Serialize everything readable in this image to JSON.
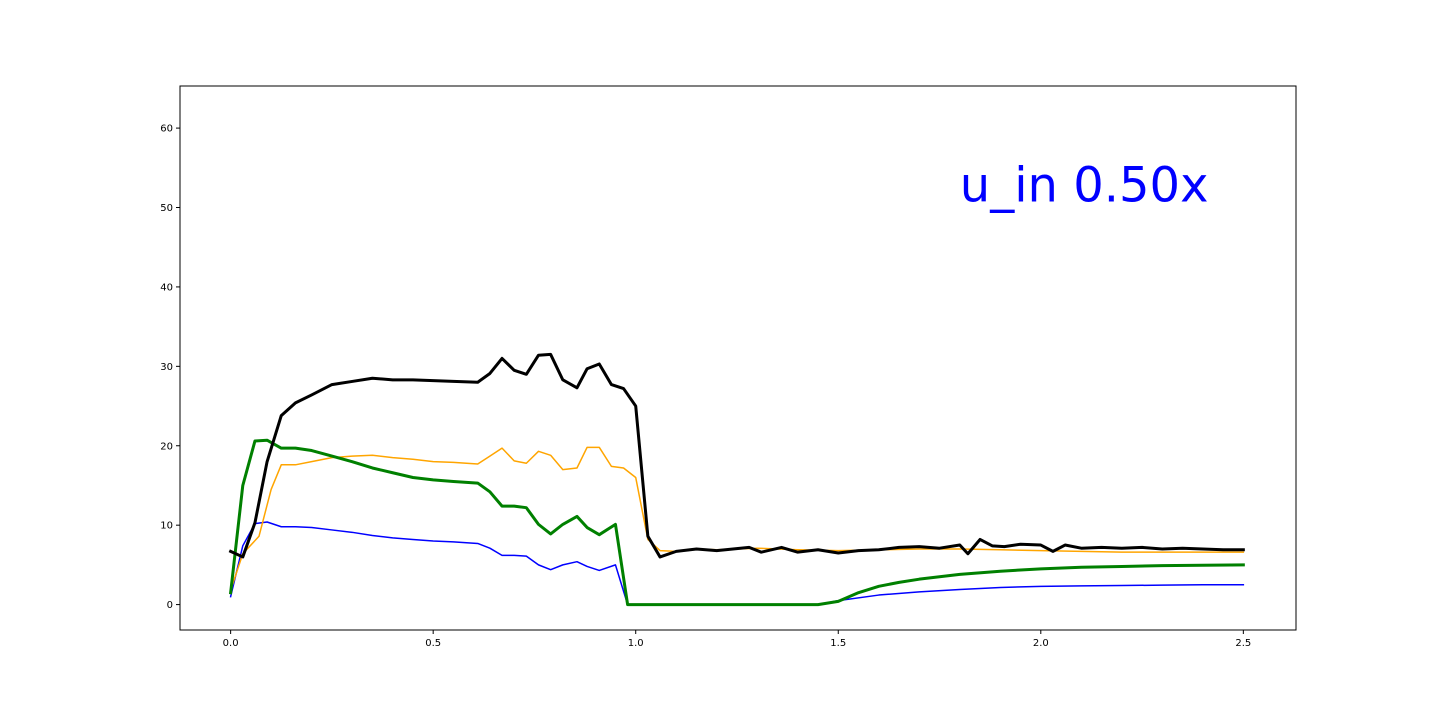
{
  "chart_data": {
    "type": "line",
    "title": "",
    "xlabel": "",
    "ylabel": "",
    "xlim": [
      -0.125,
      2.63
    ],
    "ylim": [
      -3.2,
      65.3
    ],
    "grid": false,
    "legend": "none",
    "xticks": [
      0.0,
      0.5,
      1.0,
      1.5,
      2.0,
      2.5
    ],
    "xtick_labels": [
      "0.0",
      "0.5",
      "1.0",
      "1.5",
      "2.0",
      "2.5"
    ],
    "yticks": [
      0,
      10,
      20,
      30,
      40,
      50,
      60
    ],
    "ytick_labels": [
      "0",
      "10",
      "20",
      "30",
      "40",
      "50",
      "60"
    ],
    "annotation": {
      "text": "u_in 0.50x",
      "x": 1.8,
      "y": 50.5,
      "color": "#0000ff"
    },
    "series": [
      {
        "color": "#0000ff",
        "width": 1.5,
        "points": [
          [
            0,
            1
          ],
          [
            0.03,
            7.4
          ],
          [
            0.06,
            10.2
          ],
          [
            0.09,
            10.4
          ],
          [
            0.125,
            9.8
          ],
          [
            0.16,
            9.8
          ],
          [
            0.2,
            9.7
          ],
          [
            0.25,
            9.4
          ],
          [
            0.3,
            9.1
          ],
          [
            0.35,
            8.7
          ],
          [
            0.4,
            8.4
          ],
          [
            0.45,
            8.2
          ],
          [
            0.5,
            8
          ],
          [
            0.55,
            7.9
          ],
          [
            0.61,
            7.7
          ],
          [
            0.64,
            7.1
          ],
          [
            0.67,
            6.2
          ],
          [
            0.7,
            6.2
          ],
          [
            0.73,
            6.1
          ],
          [
            0.76,
            5
          ],
          [
            0.79,
            4.4
          ],
          [
            0.82,
            5
          ],
          [
            0.855,
            5.4
          ],
          [
            0.88,
            4.8
          ],
          [
            0.91,
            4.3
          ],
          [
            0.95,
            5
          ],
          [
            0.98,
            0
          ],
          [
            1.45,
            0
          ],
          [
            1.5,
            0.5
          ],
          [
            1.6,
            1.2
          ],
          [
            1.7,
            1.6
          ],
          [
            1.8,
            1.9
          ],
          [
            1.9,
            2.15
          ],
          [
            2.0,
            2.3
          ],
          [
            2.1,
            2.35
          ],
          [
            2.2,
            2.4
          ],
          [
            2.3,
            2.45
          ],
          [
            2.4,
            2.5
          ],
          [
            2.5,
            2.5
          ]
        ]
      },
      {
        "color": "#ffa500",
        "width": 1.5,
        "points": [
          [
            0,
            1.8
          ],
          [
            0.03,
            6.4
          ],
          [
            0.07,
            8.6
          ],
          [
            0.1,
            14.5
          ],
          [
            0.125,
            17.6
          ],
          [
            0.16,
            17.6
          ],
          [
            0.2,
            18
          ],
          [
            0.25,
            18.5
          ],
          [
            0.3,
            18.7
          ],
          [
            0.35,
            18.8
          ],
          [
            0.4,
            18.5
          ],
          [
            0.45,
            18.3
          ],
          [
            0.5,
            18
          ],
          [
            0.55,
            17.9
          ],
          [
            0.61,
            17.7
          ],
          [
            0.64,
            18.7
          ],
          [
            0.67,
            19.7
          ],
          [
            0.7,
            18.1
          ],
          [
            0.73,
            17.8
          ],
          [
            0.76,
            19.3
          ],
          [
            0.79,
            18.8
          ],
          [
            0.82,
            17
          ],
          [
            0.855,
            17.2
          ],
          [
            0.88,
            19.8
          ],
          [
            0.91,
            19.8
          ],
          [
            0.94,
            17.4
          ],
          [
            0.97,
            17.2
          ],
          [
            1.0,
            16
          ],
          [
            1.03,
            8.2
          ],
          [
            1.06,
            6.8
          ],
          [
            1.1,
            6.7
          ],
          [
            1.15,
            7
          ],
          [
            1.2,
            6.9
          ],
          [
            1.3,
            7.1
          ],
          [
            1.4,
            6.9
          ],
          [
            1.5,
            6.8
          ],
          [
            1.6,
            6.9
          ],
          [
            1.7,
            7
          ],
          [
            1.8,
            7
          ],
          [
            1.9,
            6.9
          ],
          [
            2.0,
            6.8
          ],
          [
            2.1,
            6.7
          ],
          [
            2.2,
            6.6
          ],
          [
            2.3,
            6.6
          ],
          [
            2.4,
            6.6
          ],
          [
            2.5,
            6.6
          ]
        ]
      },
      {
        "color": "#008000",
        "width": 3,
        "points": [
          [
            0,
            1.5
          ],
          [
            0.03,
            15
          ],
          [
            0.06,
            20.6
          ],
          [
            0.09,
            20.7
          ],
          [
            0.125,
            19.7
          ],
          [
            0.16,
            19.7
          ],
          [
            0.2,
            19.4
          ],
          [
            0.25,
            18.7
          ],
          [
            0.3,
            18
          ],
          [
            0.35,
            17.2
          ],
          [
            0.4,
            16.6
          ],
          [
            0.45,
            16
          ],
          [
            0.5,
            15.7
          ],
          [
            0.55,
            15.5
          ],
          [
            0.61,
            15.3
          ],
          [
            0.64,
            14.2
          ],
          [
            0.67,
            12.4
          ],
          [
            0.7,
            12.4
          ],
          [
            0.73,
            12.2
          ],
          [
            0.76,
            10.1
          ],
          [
            0.79,
            8.9
          ],
          [
            0.82,
            10.1
          ],
          [
            0.855,
            11.1
          ],
          [
            0.88,
            9.7
          ],
          [
            0.91,
            8.8
          ],
          [
            0.95,
            10.1
          ],
          [
            0.98,
            0
          ],
          [
            1.45,
            0
          ],
          [
            1.5,
            0.4
          ],
          [
            1.55,
            1.5
          ],
          [
            1.6,
            2.3
          ],
          [
            1.65,
            2.8
          ],
          [
            1.7,
            3.2
          ],
          [
            1.8,
            3.8
          ],
          [
            1.9,
            4.2
          ],
          [
            2.0,
            4.5
          ],
          [
            2.1,
            4.7
          ],
          [
            2.2,
            4.8
          ],
          [
            2.3,
            4.9
          ],
          [
            2.4,
            4.95
          ],
          [
            2.5,
            5
          ]
        ]
      },
      {
        "color": "#000000",
        "width": 3,
        "points": [
          [
            0,
            6.7
          ],
          [
            0.03,
            6
          ],
          [
            0.06,
            10.3
          ],
          [
            0.09,
            18
          ],
          [
            0.125,
            23.8
          ],
          [
            0.16,
            25.4
          ],
          [
            0.2,
            26.4
          ],
          [
            0.25,
            27.7
          ],
          [
            0.3,
            28.1
          ],
          [
            0.35,
            28.5
          ],
          [
            0.4,
            28.3
          ],
          [
            0.45,
            28.3
          ],
          [
            0.5,
            28.2
          ],
          [
            0.55,
            28.1
          ],
          [
            0.61,
            28
          ],
          [
            0.64,
            29.1
          ],
          [
            0.67,
            31
          ],
          [
            0.7,
            29.5
          ],
          [
            0.73,
            29
          ],
          [
            0.76,
            31.4
          ],
          [
            0.79,
            31.5
          ],
          [
            0.82,
            28.3
          ],
          [
            0.855,
            27.3
          ],
          [
            0.88,
            29.7
          ],
          [
            0.91,
            30.3
          ],
          [
            0.94,
            27.7
          ],
          [
            0.97,
            27.2
          ],
          [
            1.0,
            25
          ],
          [
            1.03,
            8.6
          ],
          [
            1.06,
            6
          ],
          [
            1.1,
            6.7
          ],
          [
            1.15,
            7
          ],
          [
            1.2,
            6.8
          ],
          [
            1.28,
            7.2
          ],
          [
            1.31,
            6.6
          ],
          [
            1.36,
            7.2
          ],
          [
            1.4,
            6.6
          ],
          [
            1.45,
            6.9
          ],
          [
            1.5,
            6.5
          ],
          [
            1.55,
            6.8
          ],
          [
            1.6,
            6.9
          ],
          [
            1.65,
            7.2
          ],
          [
            1.7,
            7.3
          ],
          [
            1.75,
            7.1
          ],
          [
            1.8,
            7.5
          ],
          [
            1.82,
            6.4
          ],
          [
            1.85,
            8.2
          ],
          [
            1.88,
            7.4
          ],
          [
            1.91,
            7.3
          ],
          [
            1.95,
            7.6
          ],
          [
            2.0,
            7.5
          ],
          [
            2.03,
            6.7
          ],
          [
            2.06,
            7.5
          ],
          [
            2.1,
            7.1
          ],
          [
            2.15,
            7.2
          ],
          [
            2.2,
            7.1
          ],
          [
            2.25,
            7.2
          ],
          [
            2.3,
            7
          ],
          [
            2.35,
            7.1
          ],
          [
            2.4,
            7
          ],
          [
            2.45,
            6.9
          ],
          [
            2.5,
            6.9
          ]
        ]
      }
    ]
  }
}
